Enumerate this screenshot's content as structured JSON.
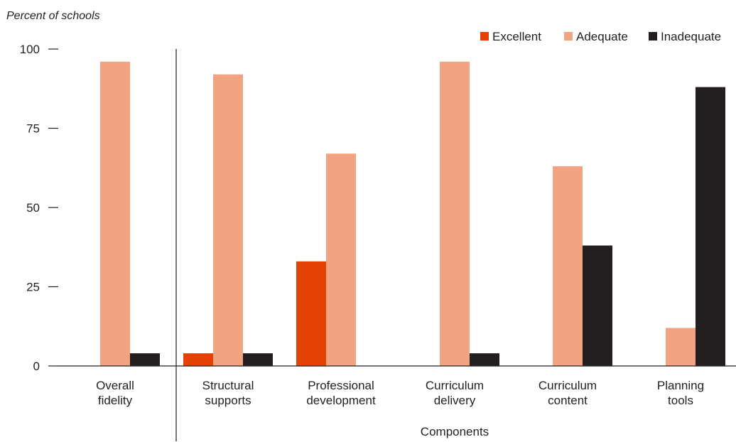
{
  "chart_data": {
    "type": "bar",
    "ylabel": "Percent of schools",
    "xlabel": "Components",
    "ylim": [
      0,
      100
    ],
    "yticks": [
      0,
      25,
      50,
      75,
      100
    ],
    "grid": false,
    "legend_position": "top-right",
    "categories": [
      [
        "Overall",
        "fidelity"
      ],
      [
        "Structural",
        "supports"
      ],
      [
        "Professional",
        "development"
      ],
      [
        "Curriculum",
        "delivery"
      ],
      [
        "Curriculum",
        "content"
      ],
      [
        "Planning",
        "tools"
      ]
    ],
    "series": [
      {
        "name": "Excellent",
        "color": "#e34204",
        "values": [
          0,
          4,
          33,
          0,
          0,
          0
        ]
      },
      {
        "name": "Adequate",
        "color": "#f1a382",
        "values": [
          96,
          92,
          67,
          96,
          63,
          12
        ]
      },
      {
        "name": "Inadequate",
        "color": "#231f20",
        "values": [
          4,
          4,
          0,
          4,
          38,
          88
        ]
      }
    ]
  }
}
